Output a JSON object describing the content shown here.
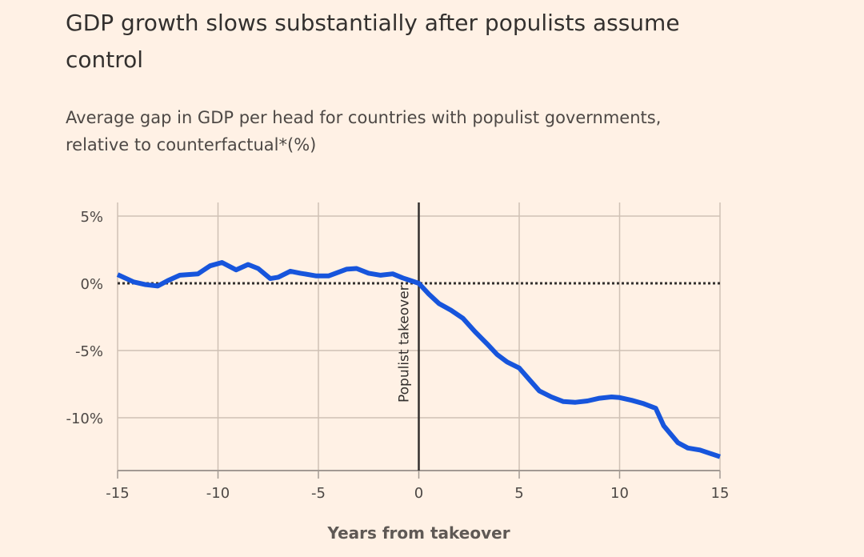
{
  "header": {
    "title": "GDP growth slows substantially after populists assume control",
    "subtitle": "Average gap in GDP per head for countries with populist governments, relative to counterfactual*(%)"
  },
  "colors": {
    "background": "#fff1e5",
    "series": "#1755dc",
    "grid": "#cfc1b5",
    "axis": "#a39a93",
    "takeover_line": "#33302e",
    "zero_line": "#33302e"
  },
  "chart_data": {
    "type": "line",
    "title": "GDP growth slows substantially after populists assume control",
    "subtitle": "Average gap in GDP per head for countries with populist governments, relative to counterfactual*(%)",
    "xlabel": "Years from takeover",
    "ylabel": "",
    "xlim": [
      -15,
      15
    ],
    "ylim": [
      -14,
      6
    ],
    "x_ticks": [
      -15,
      -10,
      -5,
      0,
      5,
      10,
      15
    ],
    "x_tick_labels": [
      "-15",
      "-10",
      "-5",
      "0",
      "5",
      "10",
      "15"
    ],
    "y_ticks": [
      5,
      0,
      -5,
      -10
    ],
    "y_tick_labels": [
      "5%",
      "0%",
      "-5%",
      "-10%"
    ],
    "grid": true,
    "legend": "none",
    "annotations": [
      {
        "text": "Populist takeover",
        "x": 0,
        "type": "vertical-line"
      }
    ],
    "reference_lines": [
      {
        "y": 0,
        "style": "dotted"
      }
    ],
    "series": [
      {
        "name": "GDP per head gap",
        "x": [
          -15,
          -14.2,
          -13.6,
          -13,
          -12.5,
          -11.9,
          -11,
          -10.4,
          -9.8,
          -9.1,
          -8.5,
          -8,
          -7.4,
          -7,
          -6.4,
          -5.9,
          -5.1,
          -4.5,
          -3.6,
          -3.1,
          -2.5,
          -1.9,
          -1.3,
          -0.8,
          0,
          0.5,
          1,
          1.6,
          2.2,
          2.8,
          3.4,
          3.9,
          4.4,
          5,
          5.5,
          6,
          6.6,
          7.2,
          7.8,
          8.4,
          9,
          9.6,
          10,
          10.6,
          11.2,
          11.8,
          12.2,
          12.9,
          13.4,
          14,
          15
        ],
        "values": [
          0.65,
          0.1,
          -0.1,
          -0.2,
          0.2,
          0.6,
          0.7,
          1.3,
          1.55,
          1.0,
          1.4,
          1.1,
          0.35,
          0.45,
          0.9,
          0.75,
          0.55,
          0.55,
          1.05,
          1.1,
          0.75,
          0.6,
          0.7,
          0.4,
          0,
          -0.8,
          -1.5,
          -2.0,
          -2.6,
          -3.6,
          -4.5,
          -5.3,
          -5.85,
          -6.3,
          -7.15,
          -8.0,
          -8.45,
          -8.8,
          -8.85,
          -8.75,
          -8.55,
          -8.45,
          -8.5,
          -8.7,
          -8.95,
          -9.3,
          -10.6,
          -11.85,
          -12.25,
          -12.4,
          -12.9
        ]
      }
    ]
  }
}
